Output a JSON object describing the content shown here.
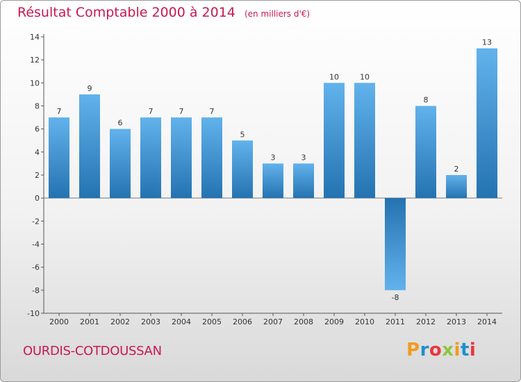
{
  "header": {
    "title": "Résultat Comptable 2000 à 2014",
    "subtitle": "(en milliers d'€)"
  },
  "footer": {
    "town": "OURDIS-COTDOUSSAN",
    "logo": "Proxiti"
  },
  "colors": {
    "title": "#c8184f",
    "bar_light": "#62b2ec",
    "bar_dark": "#2473b1",
    "logo": [
      "#f29a1f",
      "#1f8fd0",
      "#e8383b",
      "#8cc63f",
      "#f29a1f",
      "#1f8fd0",
      "#e8383b"
    ]
  },
  "chart_data": {
    "type": "bar",
    "title": "Résultat Comptable 2000 à 2014",
    "subtitle": "(en milliers d'€)",
    "xlabel": "",
    "ylabel": "",
    "categories": [
      "2000",
      "2001",
      "2002",
      "2003",
      "2004",
      "2005",
      "2006",
      "2007",
      "2008",
      "2009",
      "2010",
      "2011",
      "2012",
      "2013",
      "2014"
    ],
    "values": [
      7,
      9,
      6,
      7,
      7,
      7,
      5,
      3,
      3,
      10,
      10,
      -8,
      8,
      2,
      13
    ],
    "ylim": [
      -10,
      14
    ],
    "yticks": [
      -10,
      -8,
      -6,
      -4,
      -2,
      0,
      2,
      4,
      6,
      8,
      10,
      12,
      14
    ],
    "grid": false,
    "legend": "none"
  }
}
